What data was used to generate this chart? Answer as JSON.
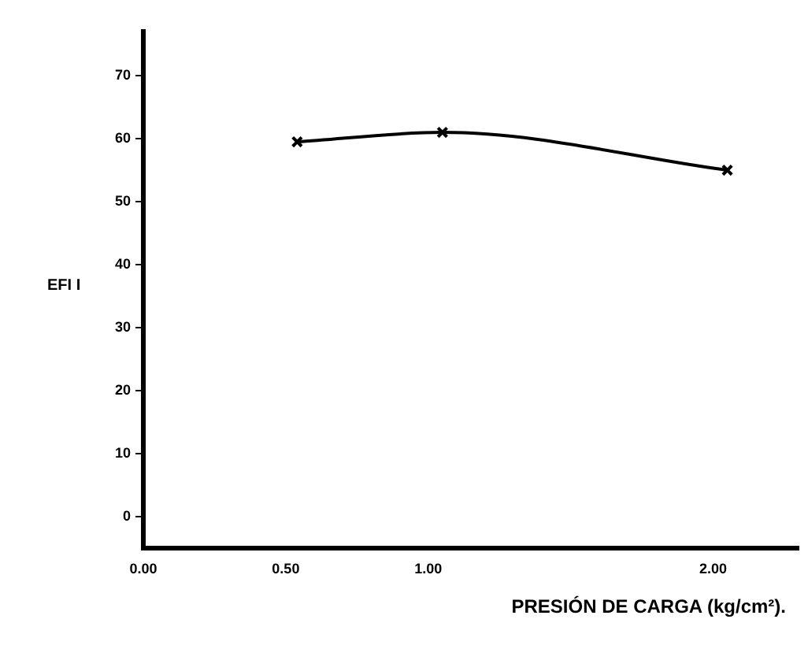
{
  "chart_data": {
    "type": "line",
    "xlabel": "PRESIÓN DE CARGA (kg/cm²).",
    "ylabel": "EFI I",
    "x": [
      0.54,
      1.05,
      2.05
    ],
    "series": [
      {
        "color": "#000000",
        "values": [
          59.5,
          61,
          55
        ]
      }
    ],
    "xlim": [
      0,
      2.3
    ],
    "xticks": [
      {
        "value": 0,
        "label": "0.00"
      },
      {
        "value": 0.5,
        "label": "0.50"
      },
      {
        "value": 1,
        "label": "1.00"
      },
      {
        "value": 2,
        "label": "2.00"
      }
    ],
    "ylim": [
      -5,
      77
    ],
    "yticks": [
      0,
      10,
      20,
      30,
      40,
      50,
      60,
      70
    ],
    "grid": false,
    "legend": false,
    "marker": "cross",
    "line_style": "solid"
  }
}
